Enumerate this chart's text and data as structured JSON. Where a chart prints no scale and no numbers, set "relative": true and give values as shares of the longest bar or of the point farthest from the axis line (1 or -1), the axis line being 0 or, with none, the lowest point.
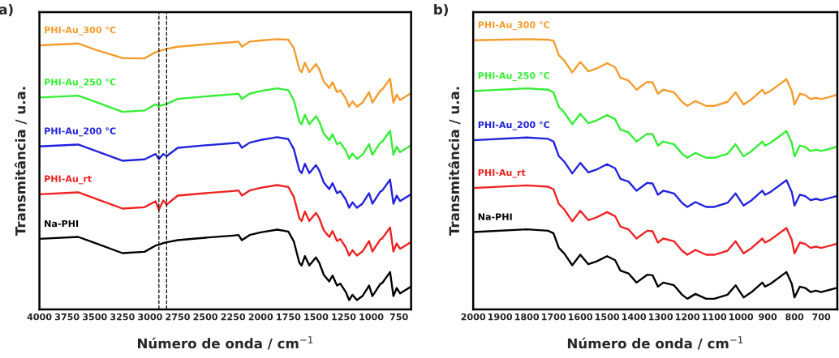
{
  "chart_data": [
    {
      "type": "line",
      "title": "a)",
      "xlabel": "Número de onda / cm$^{−1}$",
      "ylabel": "Transmitância / u.a.",
      "relative": true,
      "xlim": [
        4000,
        640
      ],
      "xticks": [
        4000,
        3750,
        3500,
        3250,
        3000,
        2750,
        2500,
        2250,
        2000,
        1750,
        1500,
        1250,
        1000,
        750
      ],
      "x": [
        4000,
        3650,
        3500,
        3250,
        3050,
        2950,
        2920,
        2880,
        2850,
        2750,
        2500,
        2250,
        2200,
        2170,
        2100,
        2000,
        1850,
        1750,
        1700,
        1650,
        1630,
        1600,
        1560,
        1500,
        1470,
        1430,
        1380,
        1350,
        1310,
        1280,
        1230,
        1200,
        1170,
        1130,
        1080,
        1020,
        990,
        920,
        900,
        830,
        800,
        770,
        740,
        640
      ],
      "ref_lines": [
        {
          "axis": "x",
          "value": 2920,
          "color": "#000000",
          "line_style": "dashed"
        },
        {
          "axis": "x",
          "value": 2850,
          "color": "#000000",
          "line_style": "dashed"
        }
      ],
      "series": [
        {
          "name": "Na-PHI",
          "color": "#000000",
          "values": [
            0.261,
            0.268,
            0.246,
            0.208,
            0.213,
            0.236,
            0.239,
            0.245,
            0.248,
            0.256,
            0.265,
            0.273,
            0.275,
            0.256,
            0.275,
            0.285,
            0.295,
            0.288,
            0.251,
            0.172,
            0.162,
            0.197,
            0.162,
            0.192,
            0.172,
            0.128,
            0.103,
            0.125,
            0.088,
            0.095,
            0.064,
            0.034,
            0.054,
            0.034,
            0.049,
            0.088,
            0.049,
            0.093,
            0.098,
            0.138,
            0.049,
            0.079,
            0.059,
            0.084
          ]
        },
        {
          "name": "PHI-Au_rt",
          "color": "#ee2222",
          "values": [
            0.426,
            0.433,
            0.411,
            0.373,
            0.378,
            0.4,
            0.369,
            0.403,
            0.388,
            0.421,
            0.43,
            0.438,
            0.44,
            0.421,
            0.44,
            0.45,
            0.46,
            0.453,
            0.416,
            0.337,
            0.327,
            0.362,
            0.327,
            0.357,
            0.337,
            0.293,
            0.268,
            0.29,
            0.253,
            0.26,
            0.229,
            0.199,
            0.219,
            0.199,
            0.214,
            0.253,
            0.214,
            0.258,
            0.263,
            0.303,
            0.214,
            0.244,
            0.224,
            0.249
          ]
        },
        {
          "name": "PHI-Au_200 °C",
          "color": "#2222dd",
          "values": [
            0.603,
            0.61,
            0.588,
            0.55,
            0.555,
            0.575,
            0.556,
            0.575,
            0.567,
            0.598,
            0.607,
            0.615,
            0.617,
            0.598,
            0.617,
            0.627,
            0.637,
            0.63,
            0.593,
            0.514,
            0.504,
            0.539,
            0.504,
            0.534,
            0.514,
            0.47,
            0.445,
            0.467,
            0.43,
            0.437,
            0.406,
            0.376,
            0.396,
            0.376,
            0.391,
            0.43,
            0.391,
            0.435,
            0.44,
            0.48,
            0.391,
            0.421,
            0.401,
            0.426
          ]
        },
        {
          "name": "PHI-Au_250 °C",
          "color": "#33ee33",
          "values": [
            0.784,
            0.791,
            0.769,
            0.731,
            0.736,
            0.759,
            0.752,
            0.757,
            0.76,
            0.779,
            0.788,
            0.796,
            0.798,
            0.779,
            0.798,
            0.808,
            0.818,
            0.811,
            0.774,
            0.695,
            0.685,
            0.72,
            0.685,
            0.715,
            0.695,
            0.651,
            0.626,
            0.648,
            0.611,
            0.618,
            0.587,
            0.557,
            0.577,
            0.557,
            0.572,
            0.611,
            0.572,
            0.616,
            0.621,
            0.661,
            0.572,
            0.602,
            0.582,
            0.607
          ]
        },
        {
          "name": "PHI-Au_300 °C",
          "color": "#f39c2c",
          "values": [
            0.977,
            0.984,
            0.962,
            0.93,
            0.929,
            0.952,
            0.955,
            0.961,
            0.964,
            0.972,
            0.981,
            0.989,
            0.991,
            0.972,
            0.991,
            0.995,
            1.0,
            0.998,
            0.967,
            0.888,
            0.878,
            0.913,
            0.878,
            0.908,
            0.888,
            0.844,
            0.819,
            0.841,
            0.804,
            0.811,
            0.78,
            0.75,
            0.77,
            0.75,
            0.765,
            0.804,
            0.765,
            0.809,
            0.814,
            0.854,
            0.765,
            0.795,
            0.775,
            0.8
          ]
        }
      ]
    },
    {
      "type": "line",
      "title": "b)",
      "xlabel": "Número de onda / cm$^{−1}$",
      "ylabel": "Transmitância / u.a.",
      "relative": true,
      "xlim": [
        2000,
        640
      ],
      "xticks": [
        2000,
        1900,
        1800,
        1700,
        1600,
        1500,
        1400,
        1300,
        1200,
        1100,
        1000,
        900,
        800,
        700
      ],
      "x": [
        2000,
        1800,
        1720,
        1700,
        1680,
        1660,
        1630,
        1600,
        1570,
        1540,
        1500,
        1470,
        1450,
        1420,
        1390,
        1350,
        1330,
        1310,
        1290,
        1250,
        1220,
        1200,
        1170,
        1130,
        1100,
        1050,
        1020,
        990,
        960,
        920,
        910,
        890,
        830,
        810,
        800,
        780,
        760,
        740,
        720,
        700,
        643
      ],
      "series": [
        {
          "name": "Na-PHI",
          "color": "#000000",
          "values": [
            0.286,
            0.296,
            0.291,
            0.281,
            0.227,
            0.207,
            0.163,
            0.202,
            0.167,
            0.177,
            0.197,
            0.182,
            0.143,
            0.133,
            0.099,
            0.128,
            0.126,
            0.084,
            0.099,
            0.089,
            0.054,
            0.039,
            0.057,
            0.039,
            0.039,
            0.054,
            0.089,
            0.044,
            0.064,
            0.099,
            0.084,
            0.094,
            0.138,
            0.094,
            0.044,
            0.084,
            0.079,
            0.064,
            0.069,
            0.064,
            0.079
          ]
        },
        {
          "name": "PHI-Au_rt",
          "color": "#ee2222",
          "values": [
            0.449,
            0.459,
            0.454,
            0.444,
            0.39,
            0.37,
            0.326,
            0.365,
            0.33,
            0.34,
            0.36,
            0.345,
            0.306,
            0.296,
            0.262,
            0.291,
            0.289,
            0.247,
            0.262,
            0.252,
            0.217,
            0.202,
            0.22,
            0.202,
            0.202,
            0.217,
            0.252,
            0.207,
            0.227,
            0.262,
            0.247,
            0.257,
            0.301,
            0.257,
            0.207,
            0.247,
            0.242,
            0.227,
            0.232,
            0.227,
            0.242
          ]
        },
        {
          "name": "PHI-Au_200 °C",
          "color": "#2222dd",
          "values": [
            0.626,
            0.636,
            0.631,
            0.621,
            0.567,
            0.547,
            0.503,
            0.542,
            0.507,
            0.517,
            0.537,
            0.522,
            0.483,
            0.473,
            0.439,
            0.468,
            0.466,
            0.424,
            0.439,
            0.429,
            0.394,
            0.379,
            0.397,
            0.379,
            0.379,
            0.394,
            0.429,
            0.384,
            0.404,
            0.439,
            0.424,
            0.434,
            0.478,
            0.434,
            0.384,
            0.424,
            0.419,
            0.404,
            0.409,
            0.404,
            0.419
          ]
        },
        {
          "name": "PHI-Au_250 °C",
          "color": "#33ee33",
          "values": [
            0.808,
            0.818,
            0.813,
            0.803,
            0.749,
            0.729,
            0.685,
            0.724,
            0.689,
            0.699,
            0.719,
            0.704,
            0.665,
            0.655,
            0.621,
            0.65,
            0.648,
            0.606,
            0.621,
            0.611,
            0.576,
            0.561,
            0.579,
            0.561,
            0.561,
            0.576,
            0.611,
            0.566,
            0.586,
            0.621,
            0.606,
            0.616,
            0.66,
            0.616,
            0.566,
            0.606,
            0.601,
            0.586,
            0.591,
            0.586,
            0.601
          ]
        },
        {
          "name": "PHI-Au_300 °C",
          "color": "#f39c2c",
          "values": [
            0.996,
            1.0,
            0.998,
            0.995,
            0.941,
            0.921,
            0.877,
            0.916,
            0.881,
            0.891,
            0.911,
            0.896,
            0.857,
            0.847,
            0.813,
            0.842,
            0.84,
            0.798,
            0.813,
            0.803,
            0.768,
            0.753,
            0.771,
            0.753,
            0.753,
            0.768,
            0.803,
            0.758,
            0.778,
            0.813,
            0.798,
            0.808,
            0.852,
            0.808,
            0.758,
            0.798,
            0.793,
            0.778,
            0.783,
            0.778,
            0.793
          ]
        }
      ]
    }
  ]
}
